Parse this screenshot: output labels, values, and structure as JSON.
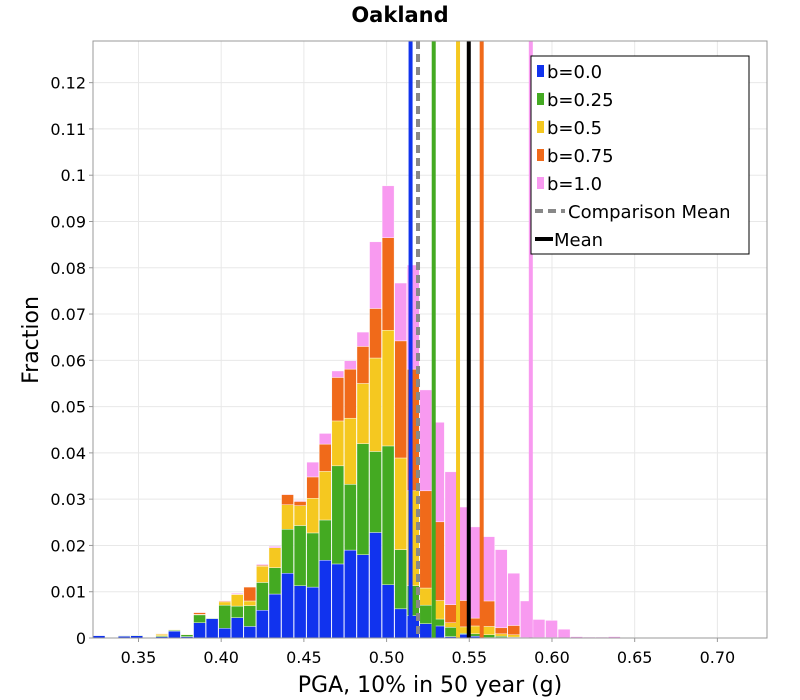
{
  "chart_data": {
    "type": "bar",
    "stacked": true,
    "title": "Oakland",
    "xlabel": "PGA, 10% in 50 year (g)",
    "ylabel": "Fraction",
    "xlim": [
      0.3225,
      0.73
    ],
    "ylim": [
      0,
      0.129
    ],
    "xticks": [
      0.35,
      0.4,
      0.45,
      0.5,
      0.55,
      0.6,
      0.65,
      0.7
    ],
    "xtick_labels": [
      "0.35",
      "0.40",
      "0.45",
      "0.50",
      "0.55",
      "0.60",
      "0.65",
      "0.70"
    ],
    "yticks": [
      0,
      0.01,
      0.02,
      0.03,
      0.04,
      0.05,
      0.06,
      0.07,
      0.08,
      0.09,
      0.1,
      0.11,
      0.12
    ],
    "ytick_labels": [
      "0",
      "0.01",
      "0.02",
      "0.03",
      "0.04",
      "0.05",
      "0.06",
      "0.07",
      "0.08",
      "0.09",
      "0.1",
      "0.11",
      "0.12"
    ],
    "bin_width": 0.0076,
    "bin_start": 0.3225,
    "grid": true,
    "legend_position": "top-right",
    "series": [
      {
        "name": "b=0.0",
        "color": "#1133ee",
        "values": [
          0.0005,
          0,
          0.0004,
          0.0005,
          0,
          0.0003,
          0.0015,
          0.0003,
          0.0033,
          0.0042,
          0.0021,
          0.0044,
          0.0025,
          0.006,
          0.0095,
          0.014,
          0.0113,
          0.011,
          0.0168,
          0.016,
          0.019,
          0.018,
          0.0228,
          0.0115,
          0.0063,
          0.0048,
          0.0031,
          0.0026,
          0.0003,
          0.0008,
          0.0004,
          0.0001,
          0.0001,
          0,
          0,
          0,
          0,
          0,
          0,
          0,
          0,
          0,
          0,
          0
        ]
      },
      {
        "name": "b=0.25",
        "color": "#44aa22",
        "values": [
          0,
          0,
          0.0001,
          0.0001,
          0,
          0.0002,
          0.0002,
          0.0004,
          0.0017,
          0.0001,
          0.005,
          0.0025,
          0.0045,
          0.006,
          0.0057,
          0.0095,
          0.013,
          0.0117,
          0.0087,
          0.0212,
          0.0142,
          0.024,
          0.0175,
          0.03,
          0.0128,
          0.0065,
          0.004,
          0.0015,
          0.002,
          0.0002,
          0.0005,
          0.0006,
          0.0003,
          0.0002,
          0,
          0,
          0,
          0,
          0,
          0,
          0,
          0,
          0,
          0
        ]
      },
      {
        "name": "b=0.5",
        "color": "#f5c820",
        "values": [
          0,
          0,
          0,
          0,
          0,
          0.0003,
          0.0001,
          0.0001,
          0.0001,
          0,
          0.0007,
          0.0025,
          0.001,
          0.0035,
          0.0043,
          0.0053,
          0.0043,
          0.0075,
          0.0105,
          0.0097,
          0.0143,
          0.013,
          0.0202,
          0.025,
          0.0198,
          0.0205,
          0.0037,
          0.004,
          0.001,
          0.0014,
          0.0017,
          0.0018,
          0.0005,
          0.0005,
          0,
          0,
          0,
          0,
          0,
          0,
          0,
          0,
          0,
          0
        ]
      },
      {
        "name": "b=0.75",
        "color": "#f06a1a",
        "values": [
          0,
          0,
          0,
          0,
          0,
          0.0001,
          0,
          0,
          0.0004,
          0,
          0.0002,
          0.0001,
          0.003,
          0.0002,
          0,
          0.0022,
          0.0009,
          0.0046,
          0.0059,
          0.0094,
          0.0106,
          0.008,
          0.0107,
          0.02,
          0.0253,
          0.0263,
          0.021,
          0.017,
          0.0039,
          0.0057,
          0.0017,
          0.0055,
          0.0013,
          0.002,
          0.0001,
          0.0001,
          0.0001,
          0,
          0,
          0,
          0,
          0,
          0,
          0
        ]
      },
      {
        "name": "b=1.0",
        "color": "#f89af0",
        "values": [
          0,
          0,
          0,
          0,
          0,
          0,
          0,
          0,
          0.0001,
          0,
          0.0001,
          0.0002,
          0,
          0.0002,
          0.0003,
          0.0001,
          0.0002,
          0.0032,
          0.0023,
          0.0014,
          0.0018,
          0.0031,
          0.0144,
          0.0112,
          0.0125,
          0.0225,
          0.0218,
          0.0215,
          0.0287,
          0.0202,
          0.0197,
          0.0139,
          0.0169,
          0.0113,
          0.0079,
          0.0039,
          0.0037,
          0.0019,
          0.0003,
          0.0002,
          0.0002,
          0.0003,
          0.0001,
          0.0001
        ]
      }
    ],
    "vlines": [
      {
        "name": "b=0.0",
        "x": 0.5145,
        "color": "#1133ee",
        "style": "solid"
      },
      {
        "name": "b=0.25",
        "x": 0.5285,
        "color": "#44aa22",
        "style": "solid"
      },
      {
        "name": "b=0.5",
        "x": 0.5432,
        "color": "#f5c820",
        "style": "solid"
      },
      {
        "name": "b=0.75",
        "x": 0.5575,
        "color": "#f06a1a",
        "style": "solid"
      },
      {
        "name": "b=1.0",
        "x": 0.5872,
        "color": "#f89af0",
        "style": "solid"
      },
      {
        "name": "Comparison Mean",
        "x": 0.519,
        "color": "#888888",
        "style": "dashed"
      },
      {
        "name": "Mean",
        "x": 0.5497,
        "color": "#000000",
        "style": "solid"
      }
    ],
    "legend": [
      {
        "label": "b=0.0",
        "color": "#1133ee",
        "kind": "box"
      },
      {
        "label": "b=0.25",
        "color": "#44aa22",
        "kind": "box"
      },
      {
        "label": "b=0.5",
        "color": "#f5c820",
        "kind": "box"
      },
      {
        "label": "b=0.75",
        "color": "#f06a1a",
        "kind": "box"
      },
      {
        "label": "b=1.0",
        "color": "#f89af0",
        "kind": "box"
      },
      {
        "label": "Comparison Mean",
        "color": "#888888",
        "kind": "dashed"
      },
      {
        "label": "Mean",
        "color": "#000000",
        "kind": "line"
      }
    ]
  }
}
